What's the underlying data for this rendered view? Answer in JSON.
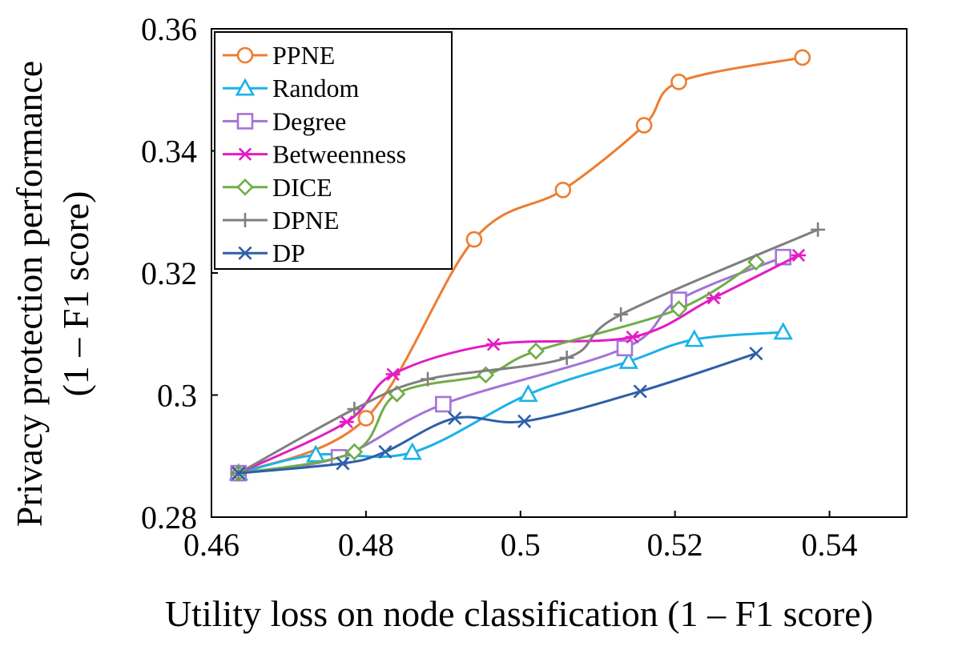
{
  "chart_data": {
    "type": "line",
    "title": "",
    "xlabel": "Utility loss on node classification (1 – F1 score)",
    "ylabel_line1": "Privacy protection performance",
    "ylabel_line2": "(1 – F1 score)",
    "xlim": [
      0.46,
      0.55
    ],
    "ylim": [
      0.28,
      0.36
    ],
    "xticks": [
      0.46,
      0.48,
      0.5,
      0.52,
      0.54
    ],
    "xtick_labels": [
      "0.46",
      "0.48",
      "0.5",
      "0.52",
      "0.54"
    ],
    "yticks": [
      0.28,
      0.3,
      0.32,
      0.34,
      0.36
    ],
    "ytick_labels": [
      "0.28",
      "0.3",
      "0.32",
      "0.34",
      "0.36"
    ],
    "grid": false,
    "legend_position": "top-left",
    "series": [
      {
        "name": "PPNE",
        "color": "#ED7D31",
        "marker": "circle",
        "x": [
          0.4635,
          0.48,
          0.494,
          0.5055,
          0.516,
          0.5205,
          0.5365
        ],
        "y": [
          0.2872,
          0.2962,
          0.3255,
          0.3336,
          0.3442,
          0.3513,
          0.3553
        ]
      },
      {
        "name": "Random",
        "color": "#1BB2E8",
        "marker": "triangle",
        "x": [
          0.4635,
          0.4735,
          0.486,
          0.501,
          0.514,
          0.5225,
          0.534
        ],
        "y": [
          0.2872,
          0.2902,
          0.2906,
          0.3001,
          0.3055,
          0.3091,
          0.3103
        ]
      },
      {
        "name": "Degree",
        "color": "#A474D6",
        "marker": "square",
        "x": [
          0.4635,
          0.4765,
          0.49,
          0.5135,
          0.5205,
          0.534
        ],
        "y": [
          0.2872,
          0.2898,
          0.2985,
          0.3077,
          0.3156,
          0.3226
        ]
      },
      {
        "name": "Betweenness",
        "color": "#E51BC4",
        "marker": "asterisk",
        "x": [
          0.4635,
          0.4775,
          0.4835,
          0.4965,
          0.5145,
          0.525,
          0.536
        ],
        "y": [
          0.2872,
          0.2956,
          0.3034,
          0.3083,
          0.3095,
          0.3159,
          0.3229
        ]
      },
      {
        "name": "DICE",
        "color": "#70AD47",
        "marker": "diamond",
        "x": [
          0.4635,
          0.4785,
          0.484,
          0.4955,
          0.502,
          0.5205,
          0.5305
        ],
        "y": [
          0.2872,
          0.2907,
          0.3002,
          0.3033,
          0.3072,
          0.3141,
          0.3218
        ]
      },
      {
        "name": "DPNE",
        "color": "#7F7F7F",
        "marker": "plus",
        "x": [
          0.4635,
          0.4785,
          0.488,
          0.506,
          0.513,
          0.5385
        ],
        "y": [
          0.2872,
          0.2977,
          0.3026,
          0.3061,
          0.3132,
          0.3271
        ]
      },
      {
        "name": "DP",
        "color": "#2E5FA8",
        "marker": "x",
        "x": [
          0.4635,
          0.477,
          0.4825,
          0.4915,
          0.5005,
          0.5155,
          0.5305
        ],
        "y": [
          0.2872,
          0.2888,
          0.2907,
          0.2962,
          0.2957,
          0.3006,
          0.3068
        ]
      }
    ]
  }
}
